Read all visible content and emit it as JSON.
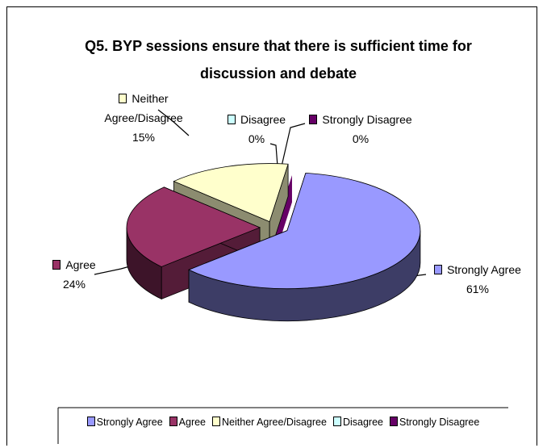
{
  "chart_data": {
    "type": "pie",
    "title": "Q5. BYP sessions ensure that there is sufficient time for discussion and debate",
    "categories": [
      "Strongly Agree",
      "Agree",
      "Neither Agree/Disagree",
      "Disagree",
      "Strongly Disagree"
    ],
    "values": [
      61,
      24,
      15,
      0,
      0
    ],
    "value_labels": [
      "61%",
      "24%",
      "15%",
      "0%",
      "0%"
    ],
    "colors": [
      "#9999ff",
      "#993366",
      "#ffffcc",
      "#ccffff",
      "#660066"
    ],
    "legend": "bottom"
  }
}
